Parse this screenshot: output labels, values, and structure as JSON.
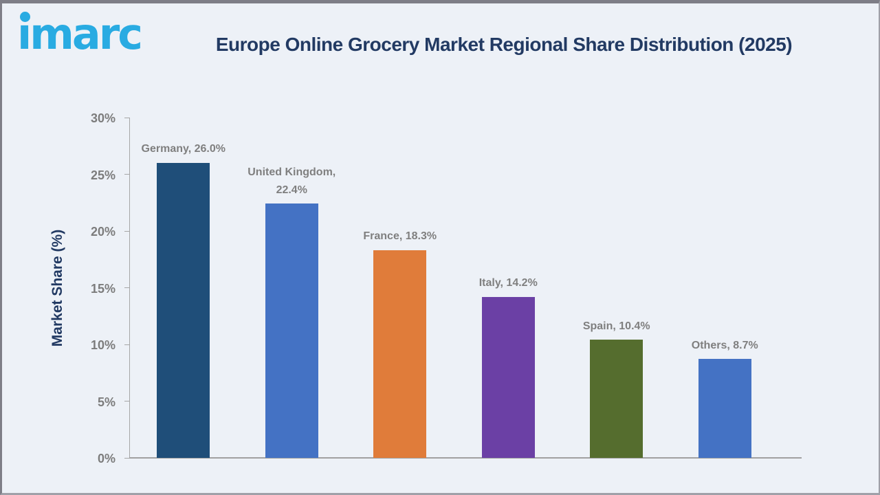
{
  "header": {
    "logo_text": "imarc"
  },
  "chart_data": {
    "type": "bar",
    "title": "Europe Online Grocery Market Regional Share Distribution (2025)",
    "categories": [
      "Germany",
      "United Kingdom",
      "France",
      "Italy",
      "Spain",
      "Others"
    ],
    "values": [
      26.0,
      22.4,
      18.3,
      14.2,
      10.4,
      8.7
    ],
    "data_labels": [
      "Germany, 26.0%",
      "United Kingdom, 22.4%",
      "France, 18.3%",
      "Italy, 14.2%",
      "Spain, 10.4%",
      "Others, 8.7%"
    ],
    "bar_colors": [
      "#1f4e79",
      "#4472c4",
      "#e07c3a",
      "#6b40a5",
      "#556d2e",
      "#4472c4"
    ],
    "xlabel": "",
    "ylabel": "Market Share (%)",
    "ylim": [
      0,
      30
    ],
    "ytick_step": 5,
    "ytick_labels": [
      "0%",
      "5%",
      "10%",
      "15%",
      "20%",
      "25%",
      "30%"
    ],
    "grid": false,
    "legend_position": "none"
  },
  "colors": {
    "background": "#edf1f7",
    "frame_border": "#7e7e87",
    "title_navy": "#223a63",
    "label_gray": "#7f7f7f",
    "axis_line": "#a6a6a6",
    "logo_blue": "#29abe2"
  }
}
